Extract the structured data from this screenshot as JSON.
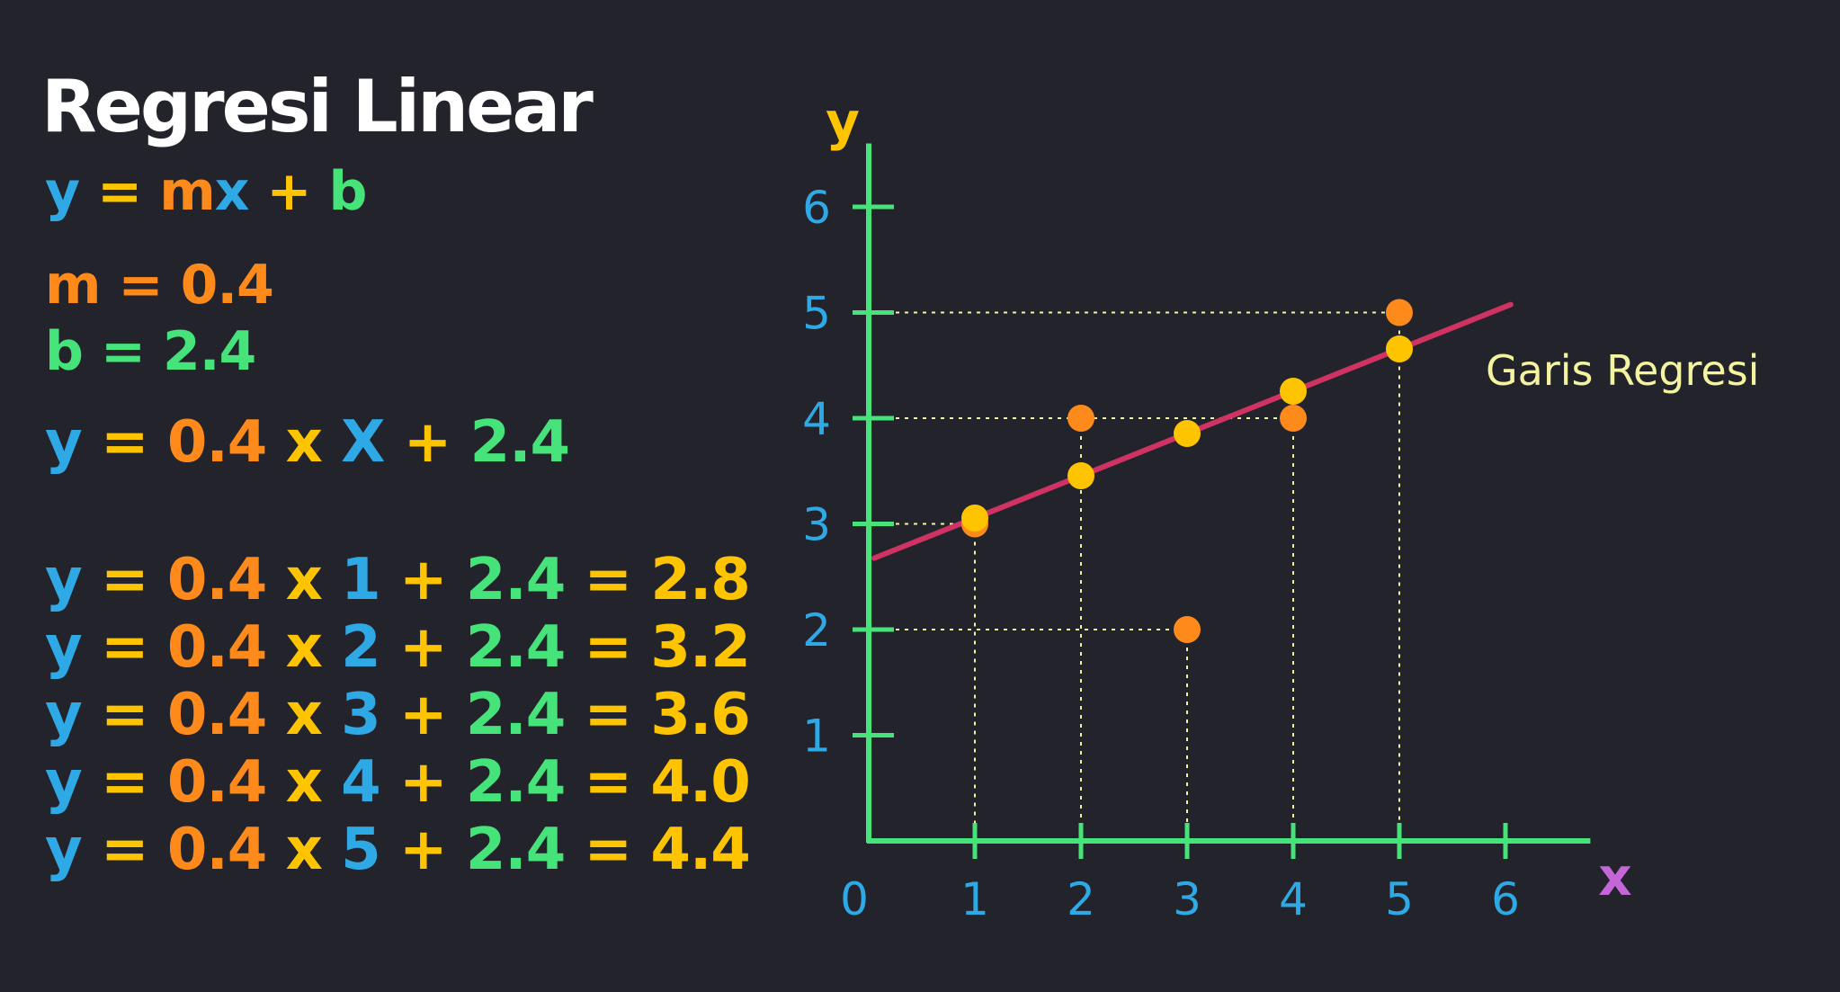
{
  "formula": {
    "title": "Regresi Linear",
    "equation": {
      "y": "y",
      "eq": "=",
      "m": "mx",
      "x": "",
      "plus": "+",
      "b": "b"
    },
    "m_line": "m = 0.4",
    "b_line": "b = 2.4",
    "general": {
      "y": "y",
      "eq": "=",
      "m": "0.4",
      "times": "x",
      "X": "X",
      "plus": "+",
      "b": "2.4"
    },
    "rows": [
      {
        "y": "y",
        "eq": "=",
        "m": "0.4",
        "times": "x",
        "x": "1",
        "plus": "+",
        "b": "2.4",
        "eq2": "=",
        "result": "2.8"
      },
      {
        "y": "y",
        "eq": "=",
        "m": "0.4",
        "times": "x",
        "x": "2",
        "plus": "+",
        "b": "2.4",
        "eq2": "=",
        "result": "3.2"
      },
      {
        "y": "y",
        "eq": "=",
        "m": "0.4",
        "times": "x",
        "x": "3",
        "plus": "+",
        "b": "2.4",
        "eq2": "=",
        "result": "3.6"
      },
      {
        "y": "y",
        "eq": "=",
        "m": "0.4",
        "times": "x",
        "x": "4",
        "plus": "+",
        "b": "2.4",
        "eq2": "=",
        "result": "4.0"
      },
      {
        "y": "y",
        "eq": "=",
        "m": "0.4",
        "times": "x",
        "x": "5",
        "plus": "+",
        "b": "2.4",
        "eq2": "=",
        "result": "4.4"
      }
    ]
  },
  "colors": {
    "background": "#22232b",
    "axis": "#46e27a",
    "ticks_text": "#2fa8e6",
    "actual_point": "#ff8a1c",
    "predicted_point": "#ffc400",
    "regression_line": "#d03264",
    "guide_line": "#f4f3a0",
    "y_axis_label": "#ffc400",
    "x_axis_label": "#c466d8"
  },
  "chart_data": {
    "type": "scatter",
    "title": "",
    "xlabel": "x",
    "ylabel": "y",
    "xlim": [
      0,
      6.8
    ],
    "ylim": [
      0,
      6.6
    ],
    "x_ticks": [
      "0",
      "1",
      "2",
      "3",
      "4",
      "5",
      "6"
    ],
    "y_ticks": [
      "1",
      "2",
      "3",
      "4",
      "5",
      "6"
    ],
    "grid": false,
    "series": [
      {
        "kind": "actual",
        "points": [
          [
            1,
            3
          ],
          [
            2,
            4
          ],
          [
            3,
            2
          ],
          [
            4,
            4
          ],
          [
            5,
            5
          ]
        ]
      },
      {
        "kind": "predicted",
        "points": [
          [
            1,
            2.8
          ],
          [
            2,
            3.2
          ],
          [
            3,
            3.6
          ],
          [
            4,
            4.0
          ],
          [
            5,
            4.4
          ]
        ]
      }
    ],
    "regression": {
      "m": 0.4,
      "b": 2.4,
      "x_range": [
        0.05,
        6.05
      ],
      "label": "Garis Regresi"
    }
  }
}
